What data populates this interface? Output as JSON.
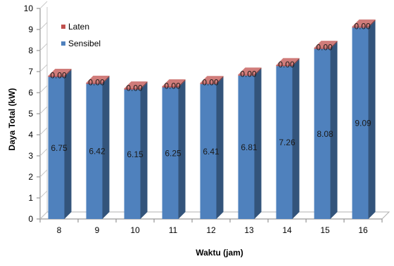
{
  "chart_data": {
    "type": "bar",
    "stacked": true,
    "categories": [
      "8",
      "9",
      "10",
      "11",
      "12",
      "13",
      "14",
      "15",
      "16"
    ],
    "series": [
      {
        "name": "Sensibel",
        "color": "#4F81BD",
        "values": [
          6.75,
          6.42,
          6.15,
          6.25,
          6.41,
          6.81,
          7.26,
          8.08,
          9.09
        ]
      },
      {
        "name": "Laten",
        "color": "#C0504D",
        "values": [
          0.0,
          0.0,
          0.0,
          0.0,
          0.0,
          0.0,
          0.0,
          0.0,
          0.0
        ]
      }
    ],
    "data_labels": {
      "Sensibel": [
        "6.75",
        "6.42",
        "6.15",
        "6.25",
        "6.41",
        "6.81",
        "7.26",
        "8.08",
        "9.09"
      ],
      "Laten": [
        "0.00",
        "0.00",
        "0.00",
        "0.00",
        "0.00",
        "0.00",
        "0.00",
        "0.00",
        "0.00"
      ]
    },
    "xlabel": "Waktu (jam)",
    "ylabel": "Daya Total (kW)",
    "yticks": [
      "0",
      "1",
      "2",
      "3",
      "4",
      "5",
      "6",
      "7",
      "8",
      "9",
      "10"
    ],
    "ylim": [
      0,
      10
    ],
    "legend": {
      "placement": "top-left",
      "items": [
        "Laten",
        "Sensibel"
      ]
    },
    "grid": false,
    "style": "3d-column"
  }
}
